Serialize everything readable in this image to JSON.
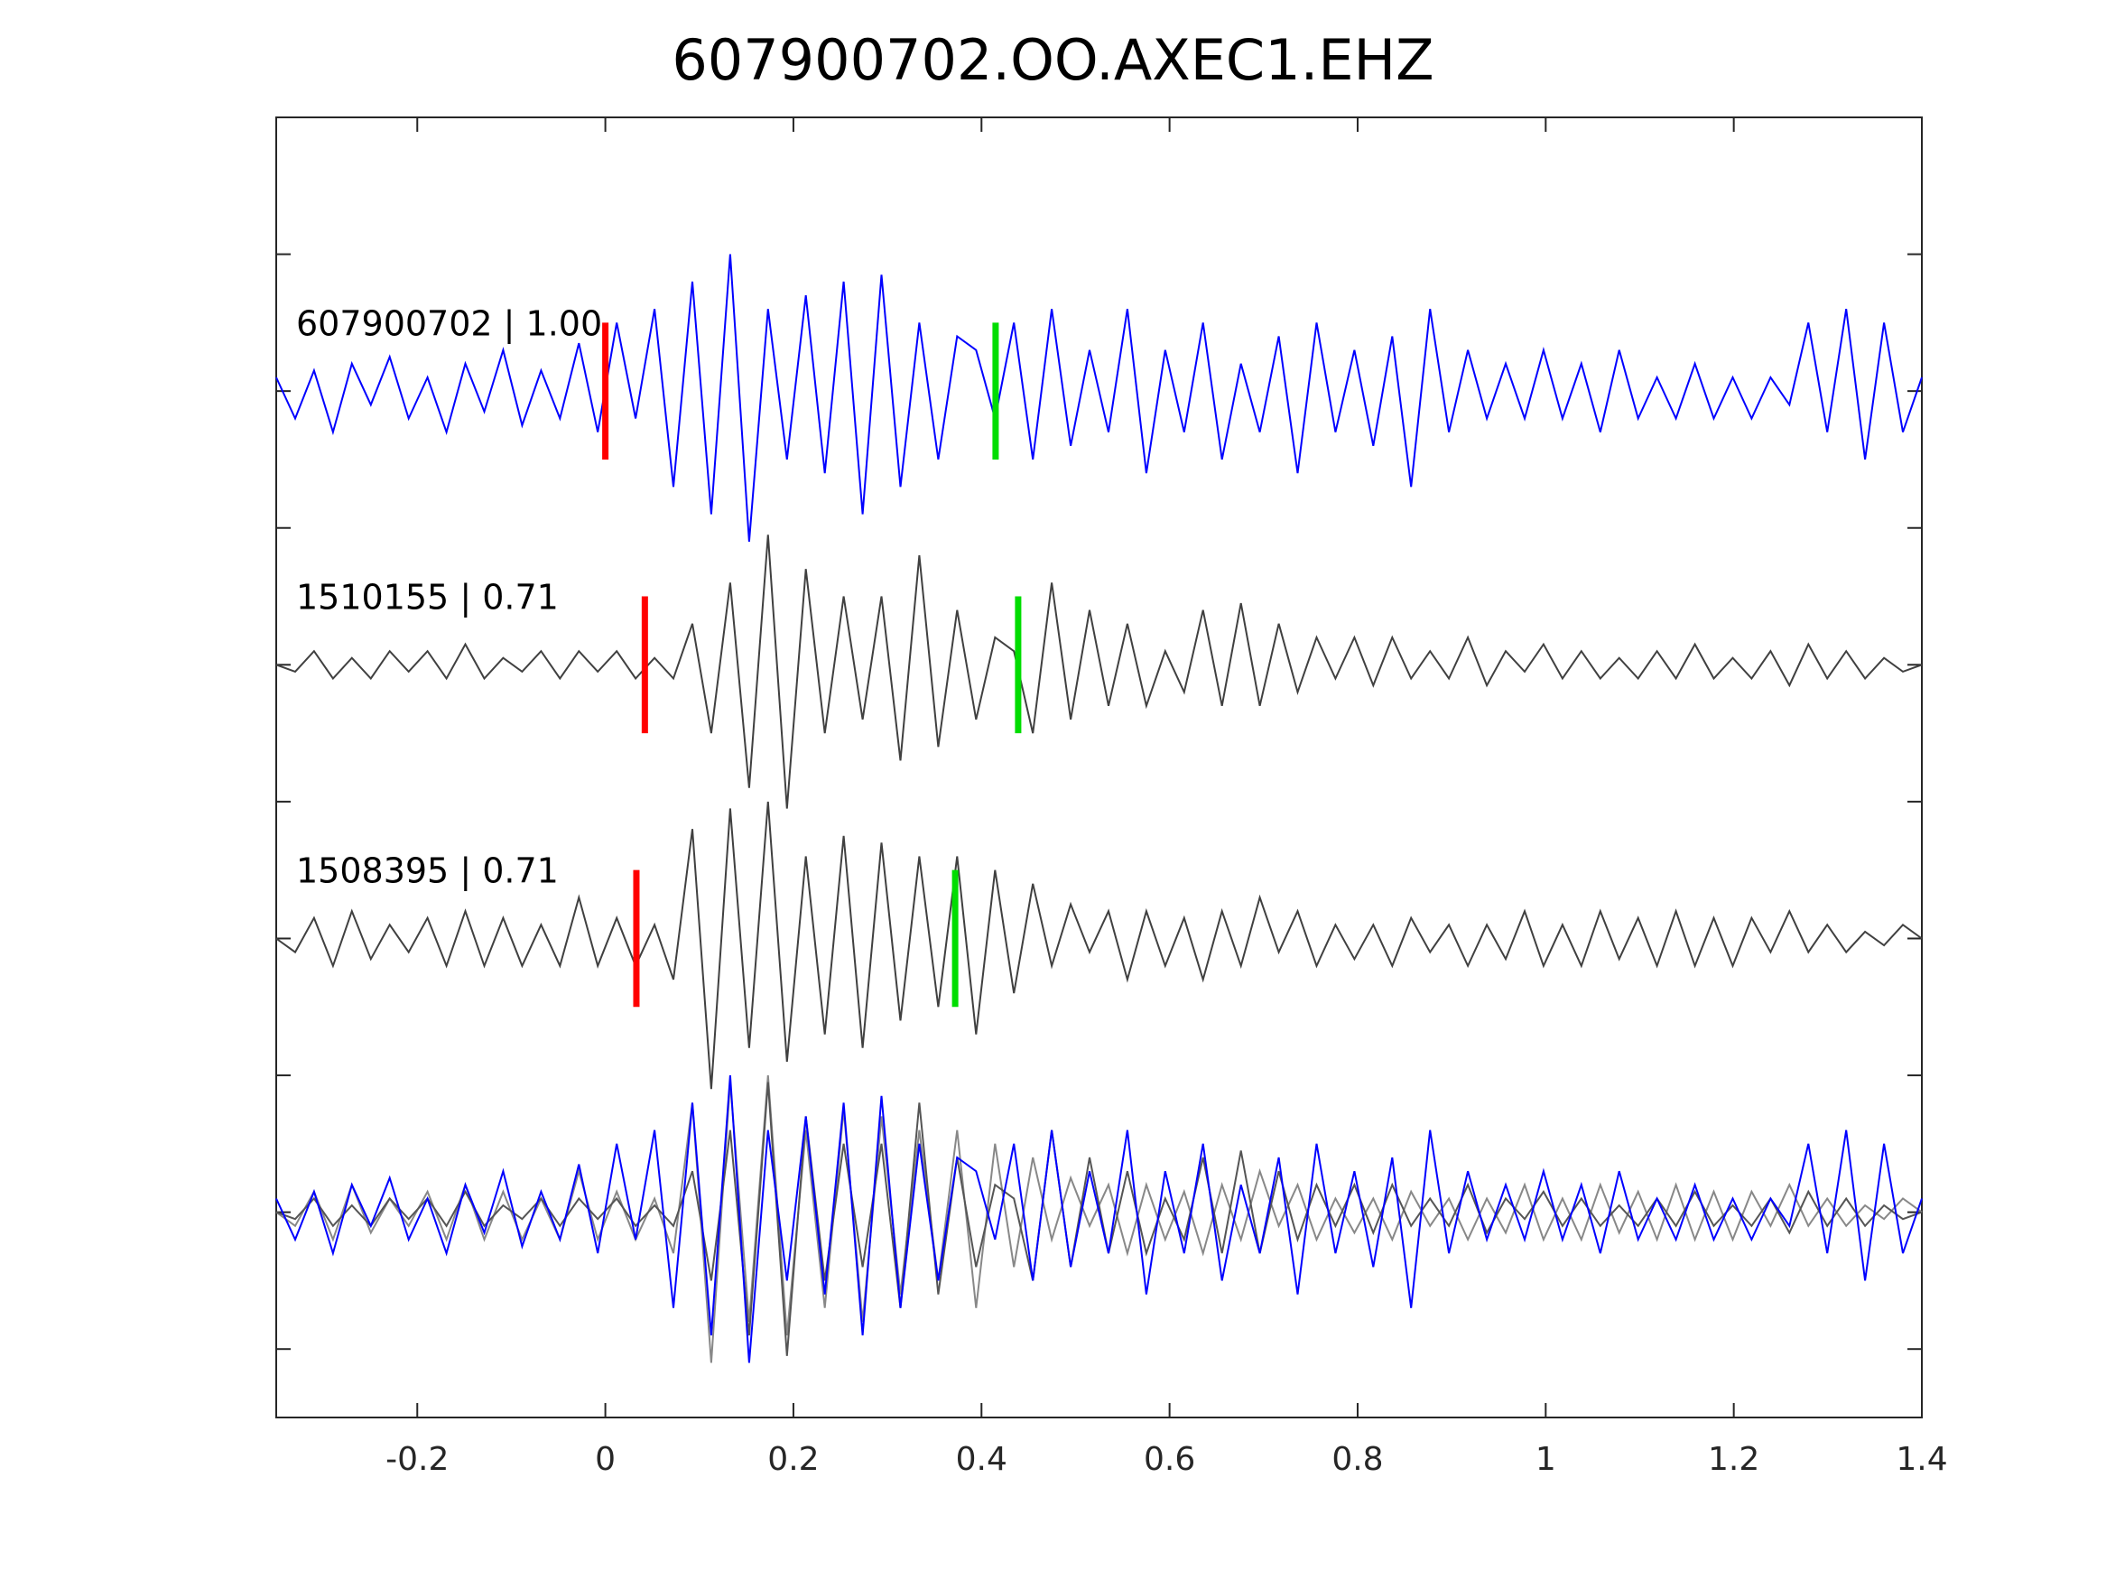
{
  "chart_data": {
    "type": "line",
    "title": "607900702.OO.AXEC1.EHZ",
    "xlabel": "",
    "ylabel": "",
    "xlim": [
      -0.35,
      1.4
    ],
    "ylim": [
      0,
      9.5
    ],
    "xticks": [
      -0.2,
      0,
      0.2,
      0.4,
      0.6,
      0.8,
      1,
      1.2,
      1.4
    ],
    "xtick_labels": [
      "-0.2",
      "0",
      "0.2",
      "0.4",
      "0.6",
      "0.8",
      "1",
      "1.2",
      "1.4"
    ],
    "yticks": [
      0.5,
      1.5,
      2.5,
      3.5,
      4.5,
      5.5,
      6.5,
      7.5,
      8.5
    ],
    "grid": false,
    "series": [
      {
        "name": "607900702",
        "label": "607900702 | 1.00",
        "color": "#0000ff",
        "offset": 7.5,
        "red_pick": 0.0,
        "green_pick": 0.415,
        "values": [
          0.1,
          -0.2,
          0.15,
          -0.3,
          0.2,
          -0.1,
          0.25,
          -0.2,
          0.1,
          -0.3,
          0.2,
          -0.15,
          0.3,
          -0.25,
          0.15,
          -0.2,
          0.35,
          -0.3,
          0.5,
          -0.2,
          0.6,
          -0.7,
          0.8,
          -0.9,
          1.0,
          -1.1,
          0.6,
          -0.5,
          0.7,
          -0.6,
          0.8,
          -0.9,
          0.85,
          -0.7,
          0.5,
          -0.5,
          0.4,
          0.3,
          -0.2,
          0.5,
          -0.5,
          0.6,
          -0.4,
          0.3,
          -0.3,
          0.6,
          -0.6,
          0.3,
          -0.3,
          0.5,
          -0.5,
          0.2,
          -0.3,
          0.4,
          -0.6,
          0.5,
          -0.3,
          0.3,
          -0.4,
          0.4,
          -0.7,
          0.6,
          -0.3,
          0.3,
          -0.2,
          0.2,
          -0.2,
          0.3,
          -0.2,
          0.2,
          -0.3,
          0.3,
          -0.2,
          0.1,
          -0.2,
          0.2,
          -0.2,
          0.1,
          -0.2,
          0.1,
          -0.1,
          0.5,
          -0.3,
          0.6,
          -0.5,
          0.5,
          -0.3,
          0.1
        ]
      },
      {
        "name": "1510155",
        "label": "1510155 | 0.71",
        "color": "#404040",
        "offset": 5.5,
        "red_pick": 0.042,
        "green_pick": 0.439,
        "values": [
          0.0,
          -0.05,
          0.1,
          -0.1,
          0.05,
          -0.1,
          0.1,
          -0.05,
          0.1,
          -0.1,
          0.15,
          -0.1,
          0.05,
          -0.05,
          0.1,
          -0.1,
          0.1,
          -0.05,
          0.1,
          -0.1,
          0.05,
          -0.1,
          0.3,
          -0.5,
          0.6,
          -0.9,
          0.95,
          -1.05,
          0.7,
          -0.5,
          0.5,
          -0.4,
          0.5,
          -0.7,
          0.8,
          -0.6,
          0.4,
          -0.4,
          0.2,
          0.1,
          -0.5,
          0.6,
          -0.4,
          0.4,
          -0.3,
          0.3,
          -0.3,
          0.1,
          -0.2,
          0.4,
          -0.3,
          0.45,
          -0.3,
          0.3,
          -0.2,
          0.2,
          -0.1,
          0.2,
          -0.15,
          0.2,
          -0.1,
          0.1,
          -0.1,
          0.2,
          -0.15,
          0.1,
          -0.05,
          0.15,
          -0.1,
          0.1,
          -0.1,
          0.05,
          -0.1,
          0.1,
          -0.1,
          0.15,
          -0.1,
          0.05,
          -0.1,
          0.1,
          -0.15,
          0.15,
          -0.1,
          0.1,
          -0.1,
          0.05,
          -0.05,
          0.0
        ]
      },
      {
        "name": "1508395",
        "label": "1508395 | 0.71",
        "color": "#404040",
        "offset": 3.5,
        "red_pick": 0.033,
        "green_pick": 0.372,
        "values": [
          0.0,
          -0.1,
          0.15,
          -0.2,
          0.2,
          -0.15,
          0.1,
          -0.1,
          0.15,
          -0.2,
          0.2,
          -0.2,
          0.15,
          -0.2,
          0.1,
          -0.2,
          0.3,
          -0.2,
          0.15,
          -0.2,
          0.1,
          -0.3,
          0.8,
          -1.1,
          0.95,
          -0.8,
          1.0,
          -0.9,
          0.6,
          -0.7,
          0.75,
          -0.8,
          0.7,
          -0.6,
          0.6,
          -0.5,
          0.6,
          -0.7,
          0.5,
          -0.4,
          0.4,
          -0.2,
          0.25,
          -0.1,
          0.2,
          -0.3,
          0.2,
          -0.2,
          0.15,
          -0.3,
          0.2,
          -0.2,
          0.3,
          -0.1,
          0.2,
          -0.2,
          0.1,
          -0.15,
          0.1,
          -0.2,
          0.15,
          -0.1,
          0.1,
          -0.2,
          0.1,
          -0.15,
          0.2,
          -0.2,
          0.1,
          -0.2,
          0.2,
          -0.15,
          0.15,
          -0.2,
          0.2,
          -0.2,
          0.15,
          -0.2,
          0.15,
          -0.1,
          0.2,
          -0.1,
          0.1,
          -0.1,
          0.05,
          -0.05,
          0.1,
          0.0
        ]
      }
    ],
    "overlay_offset": 1.5
  }
}
